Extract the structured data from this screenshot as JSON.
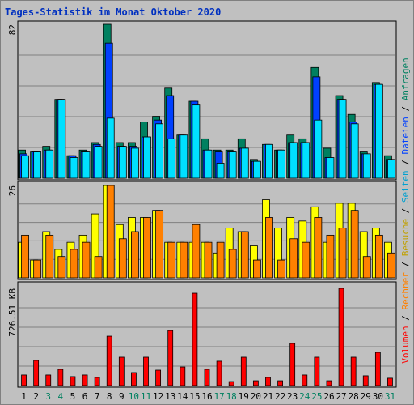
{
  "title": "Tages-Statistik im Monat Oktober 2020",
  "legend_separator": " / ",
  "chart_data": [
    {
      "type": "bar",
      "ylim": [
        0,
        82
      ],
      "yticks": [
        82
      ],
      "series": [
        {
          "name": "Anfragen",
          "color": "#008060",
          "values": [
            15,
            14,
            17,
            42,
            12,
            15,
            19,
            82,
            19,
            19,
            30,
            33,
            48,
            23,
            41,
            21,
            15,
            15,
            21,
            10,
            18,
            15,
            23,
            21,
            59,
            16,
            44,
            34,
            14,
            51,
            12
          ]
        },
        {
          "name": "Dateien",
          "color": "#0040ff",
          "values": [
            13,
            14,
            15,
            42,
            12,
            14,
            18,
            72,
            17,
            17,
            22,
            31,
            44,
            23,
            41,
            15,
            14,
            14,
            16,
            9,
            18,
            15,
            19,
            19,
            54,
            11,
            42,
            30,
            13,
            50,
            10
          ]
        },
        {
          "name": "Seiten",
          "color": "#00e0ff",
          "values": [
            12,
            14,
            15,
            42,
            11,
            14,
            17,
            32,
            17,
            16,
            22,
            29,
            21,
            23,
            39,
            15,
            8,
            14,
            16,
            9,
            18,
            15,
            19,
            19,
            31,
            11,
            42,
            29,
            13,
            50,
            10
          ]
        }
      ]
    },
    {
      "type": "bar",
      "ylim": [
        0,
        26
      ],
      "yticks": [
        26
      ],
      "series": [
        {
          "name": "Besuche",
          "color": "#ffff00",
          "values": [
            10,
            5,
            13,
            8,
            10,
            12,
            18,
            26,
            15,
            17,
            17,
            19,
            10,
            10,
            10,
            10,
            7,
            14,
            13,
            9,
            22,
            14,
            17,
            16,
            20,
            10,
            21,
            21,
            13,
            14,
            10
          ]
        },
        {
          "name": "Rechner",
          "color": "#ff8000",
          "values": [
            12,
            5,
            12,
            6,
            8,
            10,
            6,
            26,
            11,
            13,
            17,
            19,
            10,
            10,
            15,
            10,
            10,
            8,
            13,
            5,
            17,
            5,
            11,
            10,
            17,
            12,
            14,
            19,
            6,
            12,
            7
          ]
        }
      ]
    },
    {
      "type": "bar",
      "ylim": [
        0,
        726.51
      ],
      "yticks": [
        {
          "value": 726.51,
          "label": "726.51 KB"
        }
      ],
      "series": [
        {
          "name": "Volumen",
          "color": "#ff0000",
          "values": [
            79,
            188,
            79,
            121,
            67,
            79,
            61,
            369,
            212,
            97,
            212,
            115,
            411,
            139,
            690,
            121,
            182,
            30,
            212,
            36,
            61,
            36,
            315,
            79,
            212,
            36,
            726.51,
            212,
            73,
            248,
            55
          ]
        }
      ],
      "categories": [
        "1",
        "2",
        "3",
        "4",
        "5",
        "6",
        "7",
        "8",
        "9",
        "10",
        "11",
        "12",
        "13",
        "14",
        "15",
        "16",
        "17",
        "18",
        "19",
        "20",
        "21",
        "22",
        "23",
        "24",
        "25",
        "26",
        "27",
        "28",
        "29",
        "30",
        "31"
      ],
      "category_colors": [
        "#000000",
        "#000000",
        "#008060",
        "#008060",
        "#000000",
        "#000000",
        "#000000",
        "#000000",
        "#000000",
        "#008060",
        "#008060",
        "#000000",
        "#000000",
        "#000000",
        "#000000",
        "#000000",
        "#008060",
        "#008060",
        "#000000",
        "#000000",
        "#000000",
        "#000000",
        "#000000",
        "#008060",
        "#008060",
        "#000000",
        "#000000",
        "#000000",
        "#000000",
        "#000000",
        "#008060"
      ]
    }
  ]
}
